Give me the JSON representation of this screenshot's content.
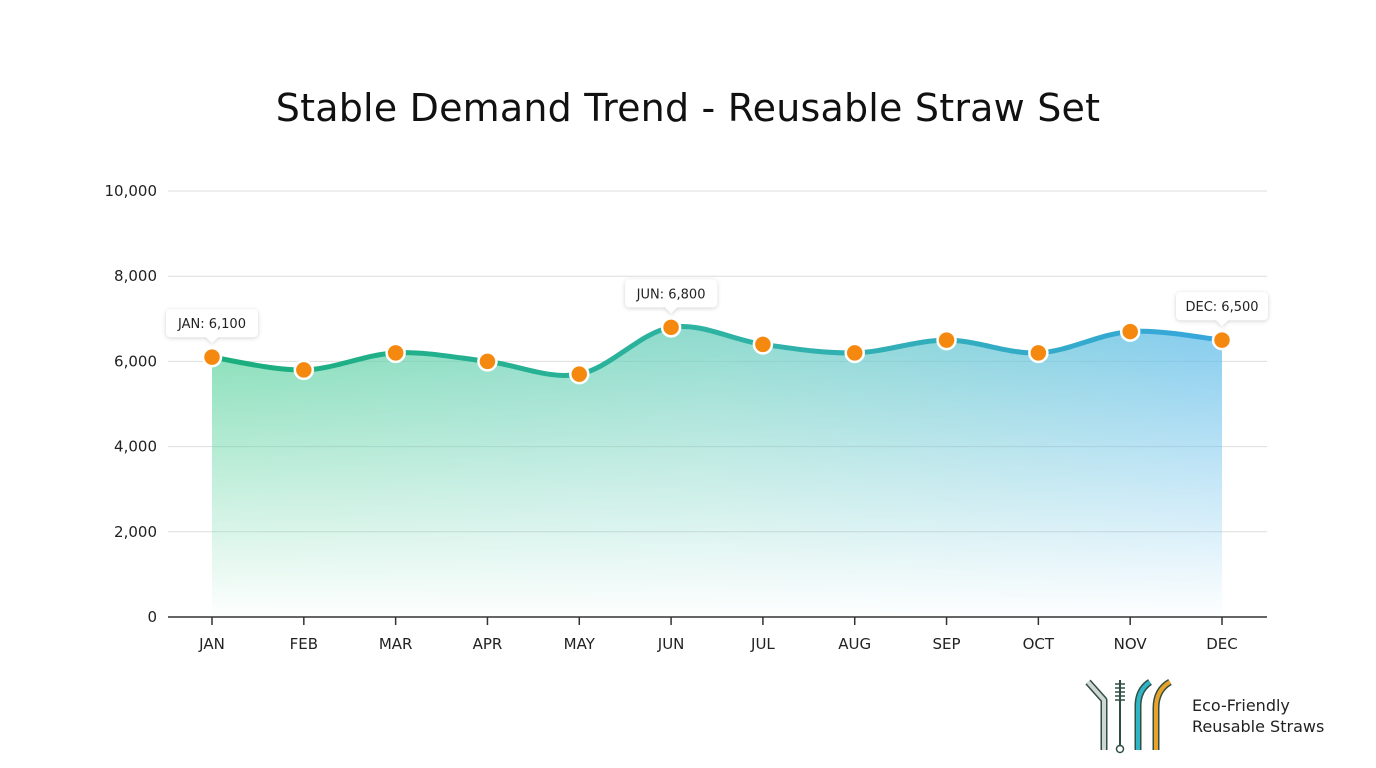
{
  "chart_data": {
    "type": "area",
    "title": "Stable Demand Trend - Reusable Straw Set",
    "xlabel": "",
    "ylabel": "",
    "categories": [
      "JAN",
      "FEB",
      "MAR",
      "APR",
      "MAY",
      "JUN",
      "JUL",
      "AUG",
      "SEP",
      "OCT",
      "NOV",
      "DEC"
    ],
    "values": [
      6100,
      5800,
      6200,
      6000,
      5700,
      6800,
      6400,
      6200,
      6500,
      6200,
      6700,
      6500
    ],
    "ylim": [
      0,
      10000
    ],
    "yticks": [
      0,
      2000,
      4000,
      6000,
      8000,
      10000
    ],
    "ytick_labels": [
      "0",
      "2,000",
      "4,000",
      "6,000",
      "8,000",
      "10,000"
    ],
    "grid": true,
    "smooth": true,
    "annotations": [
      {
        "index": 0,
        "text": "JAN: 6,100"
      },
      {
        "index": 5,
        "text": "JUN: 6,800"
      },
      {
        "index": 11,
        "text": "DEC: 6,500"
      }
    ],
    "colors": {
      "line_start": "#1aae7c",
      "line_end": "#36a6dd",
      "marker": "#f5890f",
      "grid": "#dddddd"
    }
  },
  "logo": {
    "line1": "Eco-Friendly",
    "line2": "Reusable Straws"
  }
}
